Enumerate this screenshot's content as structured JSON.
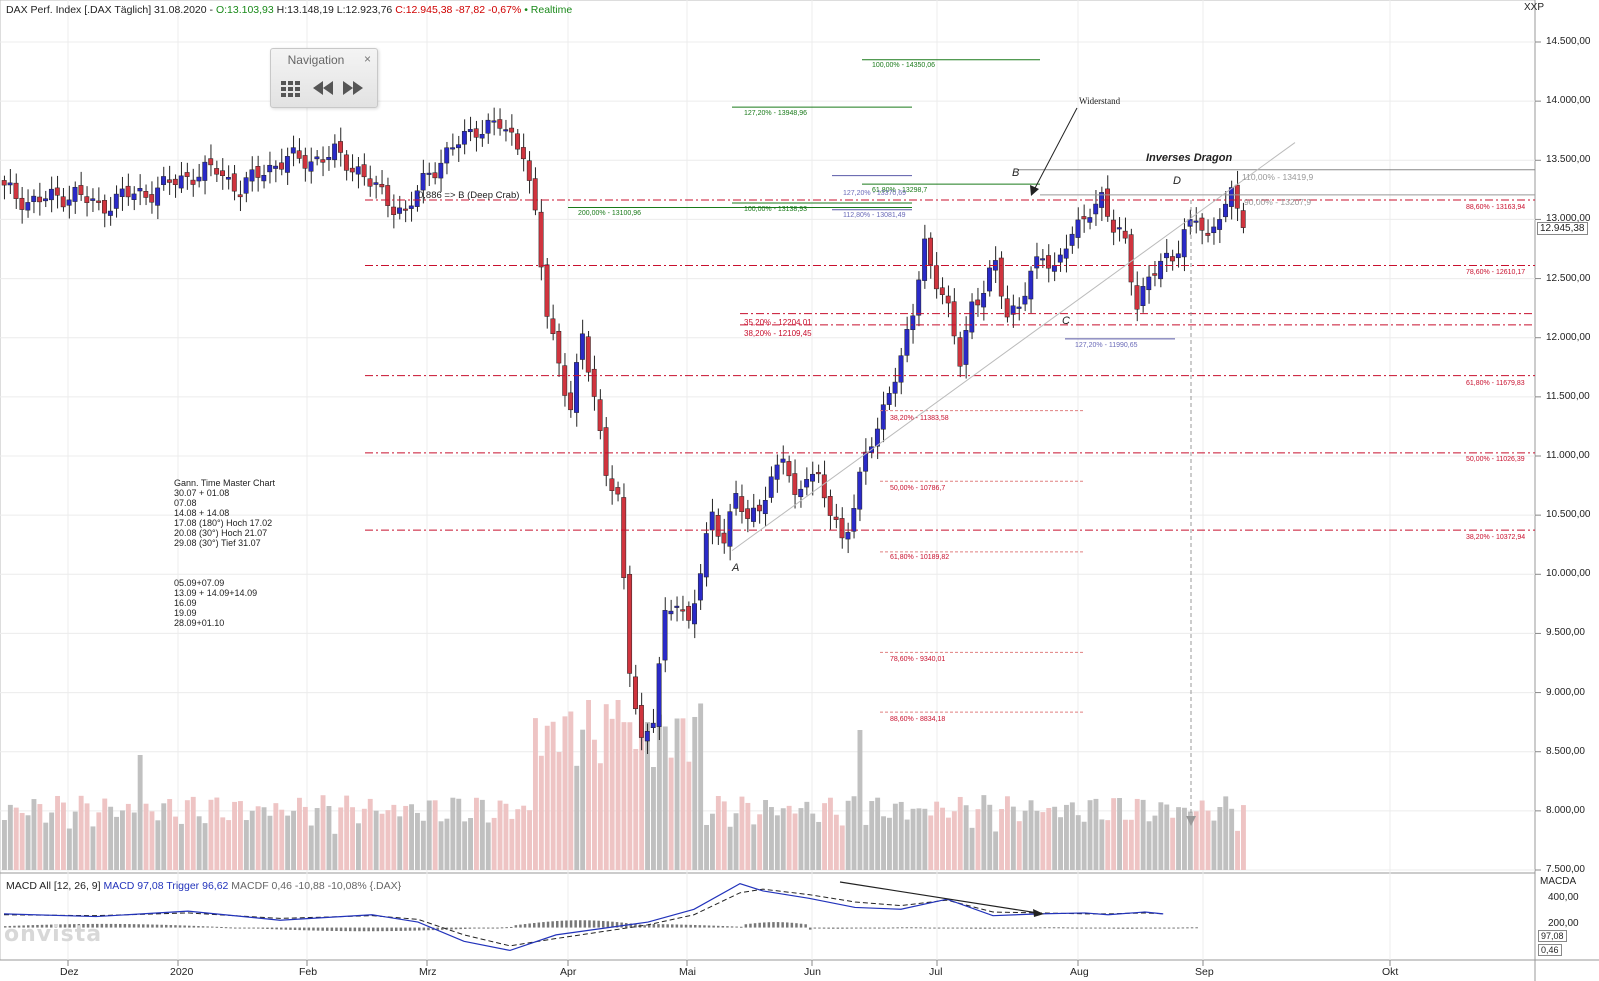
{
  "header": {
    "instrument": "DAX Perf. Index [.DAX Täglich] 31.08.2020 -",
    "open": "O:13.103,93",
    "high": "H:13.148,19",
    "low": "L:12.923,76",
    "close_change": "C:12.945,38 -87,82 -0,67%",
    "realtime": "• Realtime"
  },
  "navigation": {
    "title": "Navigation",
    "close": "×"
  },
  "axis": {
    "unit": "XXP",
    "price_labels": [
      "14.500,00",
      "14.000,00",
      "13.500,00",
      "13.000,00",
      "12.500,00",
      "12.000,00",
      "11.500,00",
      "11.000,00",
      "10.500,00",
      "10.000,00",
      "9.500,00",
      "9.000,00",
      "8.500,00",
      "8.000,00",
      "7.500,00"
    ],
    "last_price": "12.945,38",
    "months": [
      "Dez",
      "2020",
      "Feb",
      "Mrz",
      "Apr",
      "Mai",
      "Jun",
      "Jul",
      "Aug",
      "Sep",
      "Okt"
    ]
  },
  "macd": {
    "label": "MACD All [12, 26, 9]",
    "macd": "MACD 97,08",
    "trigger": "Trigger 96,62",
    "macdf": "MACDF 0,46 -10,88 -10,08% {.DAX}",
    "axis_title": "MACDA",
    "axis_labels": [
      "400,00",
      "200,00"
    ],
    "box_macd": "97,08",
    "box_macdf": "0,46"
  },
  "annotations": {
    "widerstand": "Widerstand",
    "inverses_dragon": "Inverses Dragon",
    "deep_crab": "0,886 => B (Deep Crab)",
    "point_a": "A",
    "point_b": "B",
    "point_c": "C",
    "point_d": "D",
    "gann_block_1": "Gann. Time Master Chart\n30.07 + 01.08\n07.08\n14.08 + 14.08\n17.08 (180°) Hoch 17.02\n20.08 (30°) Hoch 21.07\n29.08 (30°) Tief 31.07",
    "gann_block_2": "05.09+07.09\n13.09 + 14.09+14.09\n16.09\n19.09\n28.09+01.10",
    "fib_green": [
      "100,00% - 14350,06",
      "127,20% - 13948,96",
      "61,80% - 13298,7",
      "200,00% - 13100,96",
      "100,00% - 13138,93"
    ],
    "fib_blue": [
      "127,20% - 13370,69",
      "112,80% - 13081,49",
      "127,20% - 11990,65"
    ],
    "fib_red_mid": [
      "35,20% - 12204,01",
      "38,20% - 12109,45"
    ],
    "fib_right": [
      "110,00% - 13419,9",
      "90,00% - 13207,9"
    ],
    "fib_red_right": [
      "88,60% - 13163,94",
      "78,60% - 12610,17",
      "61,80% - 11679,83",
      "50,00% - 11026,39",
      "38,20% - 10372,94"
    ],
    "fib_red_lower": [
      "38,20% - 11383,58",
      "50,00% - 10786,7",
      "61,80% - 10189,82",
      "78,60% - 9340,01",
      "88,60% - 8834,18"
    ]
  },
  "logo": "onvista",
  "colors": {
    "up": "#2a2ac8",
    "down": "#d0343e",
    "volume_up": "#c0c0c0",
    "volume_down": "#eec4c4",
    "fib_red": "#c8102e",
    "fib_green": "#1a7a1a",
    "fib_blue": "#5a5aa8"
  },
  "chart_data": {
    "type": "candlestick",
    "title": "DAX Perf. Index [.DAX Täglich] 31.08.2020",
    "ylim": [
      7500,
      14700
    ],
    "y_ticks": [
      7500,
      8000,
      8500,
      9000,
      9500,
      10000,
      10500,
      11000,
      11500,
      12000,
      12500,
      13000,
      13500,
      14000,
      14500
    ],
    "x_ticks": [
      "Dez",
      "2020",
      "Feb",
      "Mrz",
      "Apr",
      "Mai",
      "Jun",
      "Jul",
      "Aug",
      "Sep",
      "Okt"
    ],
    "price_path": [
      [
        0,
        13250
      ],
      [
        4,
        13150
      ],
      [
        8,
        13180
      ],
      [
        12,
        13220
      ],
      [
        16,
        13100
      ],
      [
        20,
        13200
      ],
      [
        24,
        13220
      ],
      [
        28,
        13300
      ],
      [
        32,
        13380
      ],
      [
        36,
        13420
      ],
      [
        40,
        13250
      ],
      [
        44,
        13420
      ],
      [
        48,
        13510
      ],
      [
        52,
        13500
      ],
      [
        56,
        13550
      ],
      [
        60,
        13420
      ],
      [
        64,
        13200
      ],
      [
        68,
        13050
      ],
      [
        72,
        13400
      ],
      [
        76,
        13600
      ],
      [
        80,
        13780
      ],
      [
        84,
        13790
      ],
      [
        88,
        13600
      ],
      [
        90,
        13000
      ],
      [
        92,
        12200
      ],
      [
        94,
        11800
      ],
      [
        96,
        11400
      ],
      [
        98,
        12000
      ],
      [
        100,
        11500
      ],
      [
        102,
        10900
      ],
      [
        104,
        10600
      ],
      [
        106,
        9200
      ],
      [
        108,
        8600
      ],
      [
        110,
        8800
      ],
      [
        112,
        9600
      ],
      [
        114,
        9800
      ],
      [
        116,
        9600
      ],
      [
        118,
        10000
      ],
      [
        120,
        10500
      ],
      [
        122,
        10300
      ],
      [
        124,
        10700
      ],
      [
        126,
        10400
      ],
      [
        128,
        10600
      ],
      [
        130,
        10800
      ],
      [
        132,
        11000
      ],
      [
        134,
        10600
      ],
      [
        136,
        10900
      ],
      [
        138,
        10800
      ],
      [
        140,
        10500
      ],
      [
        142,
        10300
      ],
      [
        144,
        10600
      ],
      [
        146,
        11000
      ],
      [
        148,
        11200
      ],
      [
        150,
        11600
      ],
      [
        152,
        11800
      ],
      [
        154,
        12200
      ],
      [
        156,
        12800
      ],
      [
        158,
        12500
      ],
      [
        160,
        12200
      ],
      [
        162,
        11800
      ],
      [
        164,
        12300
      ],
      [
        166,
        12400
      ],
      [
        168,
        12600
      ],
      [
        170,
        12200
      ],
      [
        172,
        12300
      ],
      [
        174,
        12500
      ],
      [
        176,
        12700
      ],
      [
        178,
        12600
      ],
      [
        180,
        12800
      ],
      [
        182,
        12900
      ],
      [
        184,
        13100
      ],
      [
        186,
        13200
      ],
      [
        188,
        12900
      ],
      [
        190,
        12800
      ],
      [
        192,
        12300
      ],
      [
        194,
        12500
      ],
      [
        196,
        12600
      ],
      [
        198,
        12700
      ],
      [
        200,
        12900
      ],
      [
        202,
        13000
      ],
      [
        204,
        12800
      ],
      [
        206,
        13100
      ],
      [
        208,
        13200
      ],
      [
        210,
        12950
      ]
    ],
    "macd_line": [
      [
        0,
        150
      ],
      [
        20,
        120
      ],
      [
        40,
        180
      ],
      [
        60,
        80
      ],
      [
        80,
        140
      ],
      [
        90,
        60
      ],
      [
        100,
        -150
      ],
      [
        110,
        -250
      ],
      [
        120,
        -80
      ],
      [
        140,
        60
      ],
      [
        150,
        200
      ],
      [
        160,
        480
      ],
      [
        165,
        400
      ],
      [
        175,
        320
      ],
      [
        185,
        220
      ],
      [
        195,
        200
      ],
      [
        205,
        310
      ],
      [
        215,
        130
      ],
      [
        225,
        150
      ],
      [
        235,
        160
      ],
      [
        240,
        140
      ],
      [
        248,
        170
      ],
      [
        252,
        150
      ]
    ],
    "trigger_line": [
      [
        0,
        140
      ],
      [
        20,
        130
      ],
      [
        40,
        160
      ],
      [
        60,
        100
      ],
      [
        80,
        130
      ],
      [
        90,
        90
      ],
      [
        100,
        -80
      ],
      [
        110,
        -200
      ],
      [
        120,
        -120
      ],
      [
        140,
        30
      ],
      [
        150,
        140
      ],
      [
        160,
        380
      ],
      [
        165,
        420
      ],
      [
        175,
        360
      ],
      [
        185,
        280
      ],
      [
        195,
        240
      ],
      [
        205,
        300
      ],
      [
        215,
        170
      ],
      [
        225,
        160
      ],
      [
        235,
        150
      ],
      [
        240,
        150
      ],
      [
        248,
        160
      ],
      [
        252,
        150
      ]
    ]
  }
}
